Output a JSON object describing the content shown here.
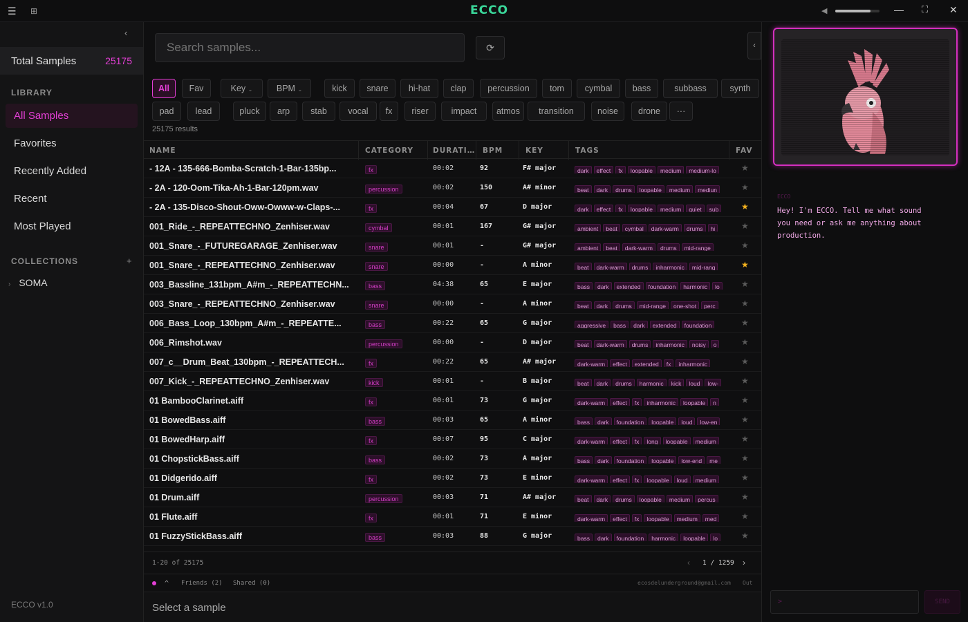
{
  "app": {
    "logo": "ECCO"
  },
  "sidebar": {
    "total_label": "Total Samples",
    "total_value": "25175",
    "library_title": "LIBRARY",
    "items": [
      {
        "label": "All Samples"
      },
      {
        "label": "Favorites"
      },
      {
        "label": "Recently Added"
      },
      {
        "label": "Recent"
      },
      {
        "label": "Most Played"
      }
    ],
    "collections_title": "COLLECTIONS",
    "collection": "SOMA",
    "version": "ECCO v1.0"
  },
  "search": {
    "placeholder": "Search samples..."
  },
  "filters": [
    "All",
    "Fav",
    "Key",
    "BPM",
    "kick",
    "snare",
    "hi-hat",
    "clap",
    "percussion",
    "tom",
    "cymbal",
    "bass",
    "subbass",
    "synth",
    "pad",
    "lead",
    "pluck",
    "arp",
    "stab",
    "vocal",
    "fx",
    "riser",
    "impact",
    "atmos",
    "transition",
    "noise",
    "drone",
    "···"
  ],
  "results_text": "25175 results",
  "columns": {
    "name": "NAME",
    "category": "CATEGORY",
    "duration": "DURATI…",
    "bpm": "BPM",
    "key": "KEY",
    "tags": "TAGS",
    "fav": "FAV"
  },
  "rows": [
    {
      "name": "- 12A - 135-666-Bomba-Scratch-1-Bar-135bp...",
      "cat": "fx",
      "dur": "00:02",
      "bpm": "92",
      "key": "F# major",
      "tags": [
        "dark",
        "effect",
        "fx",
        "loopable",
        "medium",
        "medium-lo"
      ],
      "fav": false
    },
    {
      "name": "- 2A - 120-Oom-Tika-Ah-1-Bar-120pm.wav",
      "cat": "percussion",
      "dur": "00:02",
      "bpm": "150",
      "key": "A# minor",
      "tags": [
        "beat",
        "dark",
        "drums",
        "loopable",
        "medium",
        "mediun"
      ],
      "fav": false
    },
    {
      "name": "- 2A - 135-Disco-Shout-Oww-Owww-w-Claps-...",
      "cat": "fx",
      "dur": "00:04",
      "bpm": "67",
      "key": "D major",
      "tags": [
        "dark",
        "effect",
        "fx",
        "loopable",
        "medium",
        "quiet",
        "sub"
      ],
      "fav": true
    },
    {
      "name": "001_Ride_-_REPEATTECHNO_Zenhiser.wav",
      "cat": "cymbal",
      "dur": "00:01",
      "bpm": "167",
      "key": "G# major",
      "tags": [
        "ambient",
        "beat",
        "cymbal",
        "dark-warm",
        "drums",
        "hi"
      ],
      "fav": false
    },
    {
      "name": "001_Snare_-_FUTUREGARAGE_Zenhiser.wav",
      "cat": "snare",
      "dur": "00:01",
      "bpm": "-",
      "key": "G# major",
      "tags": [
        "ambient",
        "beat",
        "dark-warm",
        "drums",
        "mid-range"
      ],
      "fav": false
    },
    {
      "name": "001_Snare_-_REPEATTECHNO_Zenhiser.wav",
      "cat": "snare",
      "dur": "00:00",
      "bpm": "-",
      "key": "A minor",
      "tags": [
        "beat",
        "dark-warm",
        "drums",
        "inharmonic",
        "mid-rang"
      ],
      "fav": true
    },
    {
      "name": "003_Bassline_131bpm_A#m_-_REPEATTECHN...",
      "cat": "bass",
      "dur": "04:38",
      "bpm": "65",
      "key": "E major",
      "tags": [
        "bass",
        "dark",
        "extended",
        "foundation",
        "harmonic",
        "lo"
      ],
      "fav": false
    },
    {
      "name": "003_Snare_-_REPEATTECHNO_Zenhiser.wav",
      "cat": "snare",
      "dur": "00:00",
      "bpm": "-",
      "key": "A minor",
      "tags": [
        "beat",
        "dark",
        "drums",
        "mid-range",
        "one-shot",
        "perc"
      ],
      "fav": false
    },
    {
      "name": "006_Bass_Loop_130bpm_A#m_-_REPEATTE...",
      "cat": "bass",
      "dur": "00:22",
      "bpm": "65",
      "key": "G major",
      "tags": [
        "aggressive",
        "bass",
        "dark",
        "extended",
        "foundation"
      ],
      "fav": false
    },
    {
      "name": "006_Rimshot.wav",
      "cat": "percussion",
      "dur": "00:00",
      "bpm": "-",
      "key": "D major",
      "tags": [
        "beat",
        "dark-warm",
        "drums",
        "inharmonic",
        "noisy",
        "o"
      ],
      "fav": false
    },
    {
      "name": "007_c__Drum_Beat_130bpm_-_REPEATTECH...",
      "cat": "fx",
      "dur": "00:22",
      "bpm": "65",
      "key": "A# major",
      "tags": [
        "dark-warm",
        "effect",
        "extended",
        "fx",
        "inharmonic"
      ],
      "fav": false
    },
    {
      "name": "007_Kick_-_REPEATTECHNO_Zenhiser.wav",
      "cat": "kick",
      "dur": "00:01",
      "bpm": "-",
      "key": "B major",
      "tags": [
        "beat",
        "dark",
        "drums",
        "harmonic",
        "kick",
        "loud",
        "low-"
      ],
      "fav": false
    },
    {
      "name": "01 BambooClarinet.aiff",
      "cat": "fx",
      "dur": "00:01",
      "bpm": "73",
      "key": "G major",
      "tags": [
        "dark-warm",
        "effect",
        "fx",
        "inharmonic",
        "loopable",
        "n"
      ],
      "fav": false
    },
    {
      "name": "01 BowedBass.aiff",
      "cat": "bass",
      "dur": "00:03",
      "bpm": "65",
      "key": "A minor",
      "tags": [
        "bass",
        "dark",
        "foundation",
        "loopable",
        "loud",
        "low-en"
      ],
      "fav": false
    },
    {
      "name": "01 BowedHarp.aiff",
      "cat": "fx",
      "dur": "00:07",
      "bpm": "95",
      "key": "C major",
      "tags": [
        "dark-warm",
        "effect",
        "fx",
        "long",
        "loopable",
        "medium"
      ],
      "fav": false
    },
    {
      "name": "01 ChopstickBass.aiff",
      "cat": "bass",
      "dur": "00:02",
      "bpm": "73",
      "key": "A major",
      "tags": [
        "bass",
        "dark",
        "foundation",
        "loopable",
        "low-end",
        "me"
      ],
      "fav": false
    },
    {
      "name": "01 Didgerido.aiff",
      "cat": "fx",
      "dur": "00:02",
      "bpm": "73",
      "key": "E minor",
      "tags": [
        "dark-warm",
        "effect",
        "fx",
        "loopable",
        "loud",
        "medium"
      ],
      "fav": false
    },
    {
      "name": "01 Drum.aiff",
      "cat": "percussion",
      "dur": "00:03",
      "bpm": "71",
      "key": "A# major",
      "tags": [
        "beat",
        "dark",
        "drums",
        "loopable",
        "medium",
        "percus"
      ],
      "fav": false
    },
    {
      "name": "01 Flute.aiff",
      "cat": "fx",
      "dur": "00:01",
      "bpm": "71",
      "key": "E minor",
      "tags": [
        "dark-warm",
        "effect",
        "fx",
        "loopable",
        "medium",
        "med"
      ],
      "fav": false
    },
    {
      "name": "01 FuzzyStickBass.aiff",
      "cat": "bass",
      "dur": "00:03",
      "bpm": "88",
      "key": "G major",
      "tags": [
        "bass",
        "dark",
        "foundation",
        "harmonic",
        "loopable",
        "lo"
      ],
      "fav": false
    }
  ],
  "pager": {
    "info": "1-20 of 25175",
    "page": "1 / 1259"
  },
  "status": {
    "friends": "Friends (2)",
    "shared": "Shared (0)",
    "email": "ecosdelunderground@gmail.com",
    "out": "Out"
  },
  "selbar": "Select a sample",
  "chat": {
    "label": "ECCO",
    "message": "Hey! I'm ECCO. Tell me what sound you need or ask me anything about production.",
    "input_placeholder": ">",
    "send": "SEND"
  },
  "colors": {
    "accent": "#e33fd5",
    "logo": "#3ad79a",
    "star": "#f2b01e"
  }
}
